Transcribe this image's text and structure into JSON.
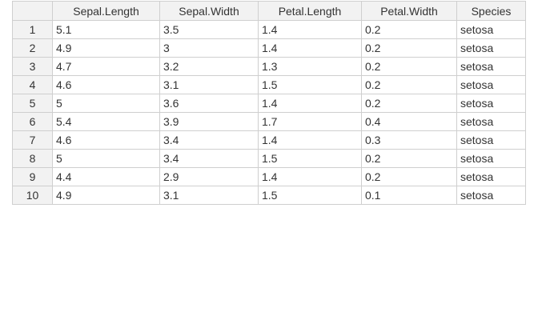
{
  "table": {
    "columns": [
      "",
      "Sepal.Length",
      "Sepal.Width",
      "Petal.Length",
      "Petal.Width",
      "Species"
    ],
    "rows": [
      {
        "num": "1",
        "sepal_length": "5.1",
        "sepal_width": "3.5",
        "petal_length": "1.4",
        "petal_width": "0.2",
        "species": "setosa"
      },
      {
        "num": "2",
        "sepal_length": "4.9",
        "sepal_width": "3",
        "petal_length": "1.4",
        "petal_width": "0.2",
        "species": "setosa"
      },
      {
        "num": "3",
        "sepal_length": "4.7",
        "sepal_width": "3.2",
        "petal_length": "1.3",
        "petal_width": "0.2",
        "species": "setosa"
      },
      {
        "num": "4",
        "sepal_length": "4.6",
        "sepal_width": "3.1",
        "petal_length": "1.5",
        "petal_width": "0.2",
        "species": "setosa"
      },
      {
        "num": "5",
        "sepal_length": "5",
        "sepal_width": "3.6",
        "petal_length": "1.4",
        "petal_width": "0.2",
        "species": "setosa"
      },
      {
        "num": "6",
        "sepal_length": "5.4",
        "sepal_width": "3.9",
        "petal_length": "1.7",
        "petal_width": "0.4",
        "species": "setosa"
      },
      {
        "num": "7",
        "sepal_length": "4.6",
        "sepal_width": "3.4",
        "petal_length": "1.4",
        "petal_width": "0.3",
        "species": "setosa"
      },
      {
        "num": "8",
        "sepal_length": "5",
        "sepal_width": "3.4",
        "petal_length": "1.5",
        "petal_width": "0.2",
        "species": "setosa"
      },
      {
        "num": "9",
        "sepal_length": "4.4",
        "sepal_width": "2.9",
        "petal_length": "1.4",
        "petal_width": "0.2",
        "species": "setosa"
      },
      {
        "num": "10",
        "sepal_length": "4.9",
        "sepal_width": "3.1",
        "petal_length": "1.5",
        "petal_width": "0.1",
        "species": "setosa"
      }
    ]
  }
}
